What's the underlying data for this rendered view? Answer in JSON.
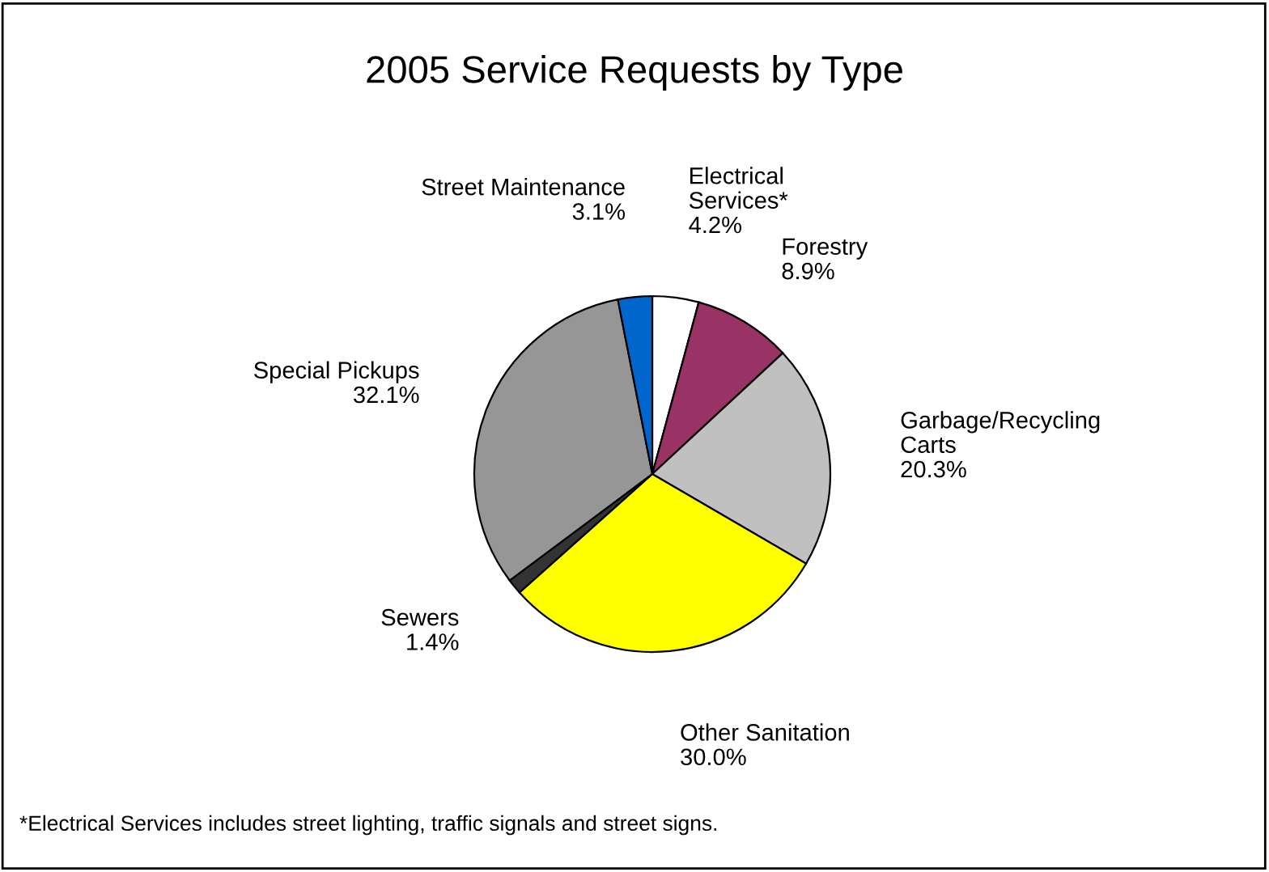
{
  "chart_data": {
    "type": "pie",
    "title": "2005 Service Requests by Type",
    "categories": [
      "Electrical\nServices*",
      "Forestry",
      "Garbage/Recycling\nCarts",
      "Other Sanitation",
      "Sewers",
      "Special Pickups",
      "Street Maintenance"
    ],
    "values": [
      4.2,
      8.9,
      20.3,
      30.0,
      1.4,
      32.1,
      3.1
    ],
    "value_labels": [
      "4.2%",
      "8.9%",
      "20.3%",
      "30.0%",
      "1.4%",
      "32.1%",
      "3.1%"
    ],
    "colors": [
      "#ffffff",
      "#993366",
      "#c0c0c0",
      "#ffff00",
      "#333333",
      "#969696",
      "#0066cc"
    ],
    "legend": false,
    "annotations": [
      "*Electrical Services includes street lighting, traffic signals and street signs."
    ]
  }
}
